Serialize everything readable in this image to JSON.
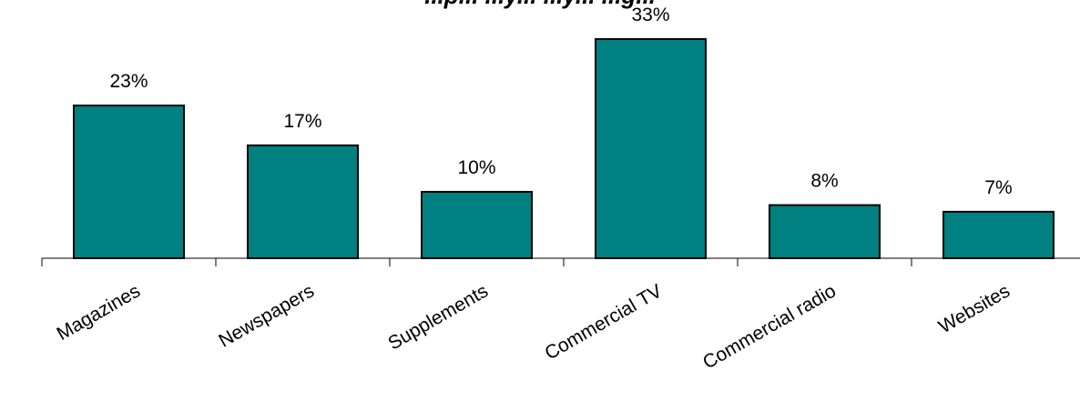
{
  "chart_data": {
    "type": "bar",
    "title": "...p... ...y... ...y... ...g...",
    "categories": [
      "Magazines",
      "Newspapers",
      "Supplements",
      "Commercial TV",
      "Commercial radio",
      "Websites"
    ],
    "values": [
      23,
      17,
      10,
      33,
      8,
      7
    ],
    "data_labels": [
      "23%",
      "17%",
      "10%",
      "33%",
      "8%",
      "7%"
    ],
    "value_unit": "%",
    "ylim": [
      0,
      33
    ],
    "grid": false,
    "legend": "none",
    "bar_color": "#008080",
    "bar_edge_color": "#000000",
    "xlabel": "",
    "ylabel": ""
  }
}
